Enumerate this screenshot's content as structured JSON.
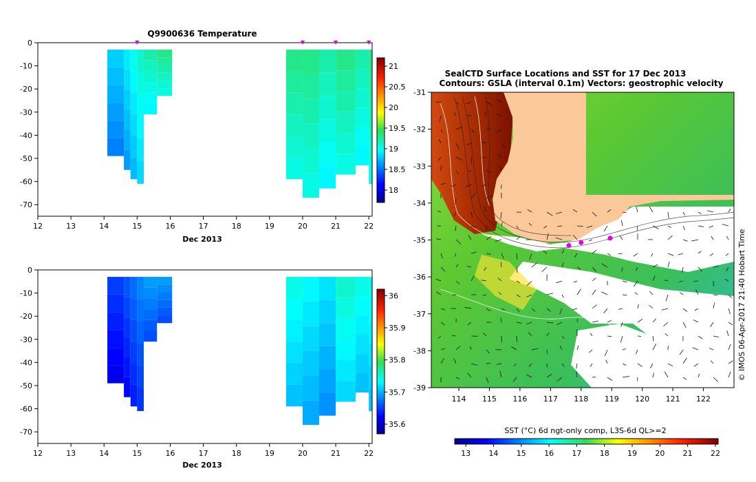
{
  "chart_data": [
    {
      "type": "heatmap",
      "title": "Q9900636  Temperature",
      "xlabel": "Dec 2013",
      "xticks": [
        "12",
        "13",
        "14",
        "15",
        "16",
        "17",
        "18",
        "19",
        "20",
        "21",
        "22"
      ],
      "xlim": [
        12,
        22.1
      ],
      "ylim": [
        -75,
        0
      ],
      "yticks": [
        "0",
        "-10",
        "-20",
        "-30",
        "-40",
        "-50",
        "-60",
        "-70"
      ],
      "profile_marker_days": [
        15,
        20,
        21,
        22
      ],
      "colorbar": {
        "ticks": [
          "18",
          "18.5",
          "19",
          "19.5",
          "20",
          "20.5",
          "21"
        ],
        "min": 17.7,
        "max": 21.2
      },
      "profiles": [
        {
          "day": 14.1,
          "depth": 49,
          "value": 18.8
        },
        {
          "day": 14.6,
          "depth": 55,
          "value": 18.9
        },
        {
          "day": 14.8,
          "depth": 59,
          "value": 19.0
        },
        {
          "day": 15.0,
          "depth": 61,
          "value": 19.1
        },
        {
          "day": 15.2,
          "depth": 31,
          "value": 19.2
        },
        {
          "day": 15.6,
          "depth": 23,
          "value": 19.3
        },
        {
          "day": 19.5,
          "depth": 59,
          "value": 19.3
        },
        {
          "day": 20.0,
          "depth": 67,
          "value": 19.3
        },
        {
          "day": 20.5,
          "depth": 63,
          "value": 19.2
        },
        {
          "day": 21.0,
          "depth": 57,
          "value": 19.3
        },
        {
          "day": 21.6,
          "depth": 53,
          "value": 19.2
        },
        {
          "day": 22.0,
          "depth": 61,
          "value": 19.3
        }
      ]
    },
    {
      "type": "heatmap",
      "title": "",
      "xlabel": "Dec 2013",
      "xticks": [
        "12",
        "13",
        "14",
        "15",
        "16",
        "17",
        "18",
        "19",
        "20",
        "21",
        "22"
      ],
      "xlim": [
        12,
        22.1
      ],
      "ylim": [
        -75,
        0
      ],
      "yticks": [
        "0",
        "-10",
        "-20",
        "-30",
        "-40",
        "-50",
        "-60",
        "-70"
      ],
      "colorbar": {
        "ticks": [
          "35.6",
          "35.7",
          "35.8",
          "35.9",
          "36"
        ],
        "min": 35.57,
        "max": 36.02
      },
      "profiles": [
        {
          "day": 14.1,
          "depth": 49,
          "value": 35.65
        },
        {
          "day": 14.6,
          "depth": 55,
          "value": 35.66
        },
        {
          "day": 14.8,
          "depth": 59,
          "value": 35.67
        },
        {
          "day": 15.0,
          "depth": 61,
          "value": 35.68
        },
        {
          "day": 15.2,
          "depth": 31,
          "value": 35.69
        },
        {
          "day": 15.6,
          "depth": 23,
          "value": 35.69
        },
        {
          "day": 19.5,
          "depth": 59,
          "value": 35.74
        },
        {
          "day": 20.0,
          "depth": 67,
          "value": 35.73
        },
        {
          "day": 20.5,
          "depth": 63,
          "value": 35.72
        },
        {
          "day": 21.0,
          "depth": 57,
          "value": 35.75
        },
        {
          "day": 21.6,
          "depth": 53,
          "value": 35.74
        },
        {
          "day": 22.0,
          "depth": 61,
          "value": 35.74
        }
      ]
    },
    {
      "type": "heatmap",
      "title": "SealCTD Surface Locations and SST for 17 Dec 2013",
      "subtitle": "Contours: GSLA (interval 0.1m) Vectors: geostrophic velocity",
      "xticks": [
        "114",
        "115",
        "116",
        "117",
        "118",
        "119",
        "120",
        "121",
        "122"
      ],
      "yticks": [
        "-31",
        "-32",
        "-33",
        "-34",
        "-35",
        "-36",
        "-37",
        "-38",
        "-39"
      ],
      "xlim": [
        113.1,
        123.0
      ],
      "ylim": [
        -39,
        -31
      ],
      "colorbar": {
        "label": "SST (°C) 6d ngt-only comp, L3S-6d QL>=2",
        "ticks": [
          "13",
          "14",
          "15",
          "16",
          "17",
          "18",
          "19",
          "20",
          "21",
          "22"
        ],
        "min": 12.6,
        "max": 22.1
      },
      "side_label": "© IMOS 06-Apr-2017 21:40 Hobart Time",
      "seal_locations": [
        {
          "lon": 118.0,
          "lat": -35.07
        },
        {
          "lon": 118.95,
          "lat": -34.95
        },
        {
          "lon": 117.6,
          "lat": -35.15
        }
      ]
    }
  ],
  "colors": {
    "land": "#fbc89a",
    "marker": "#e000e0",
    "contour": "#ffffff"
  }
}
